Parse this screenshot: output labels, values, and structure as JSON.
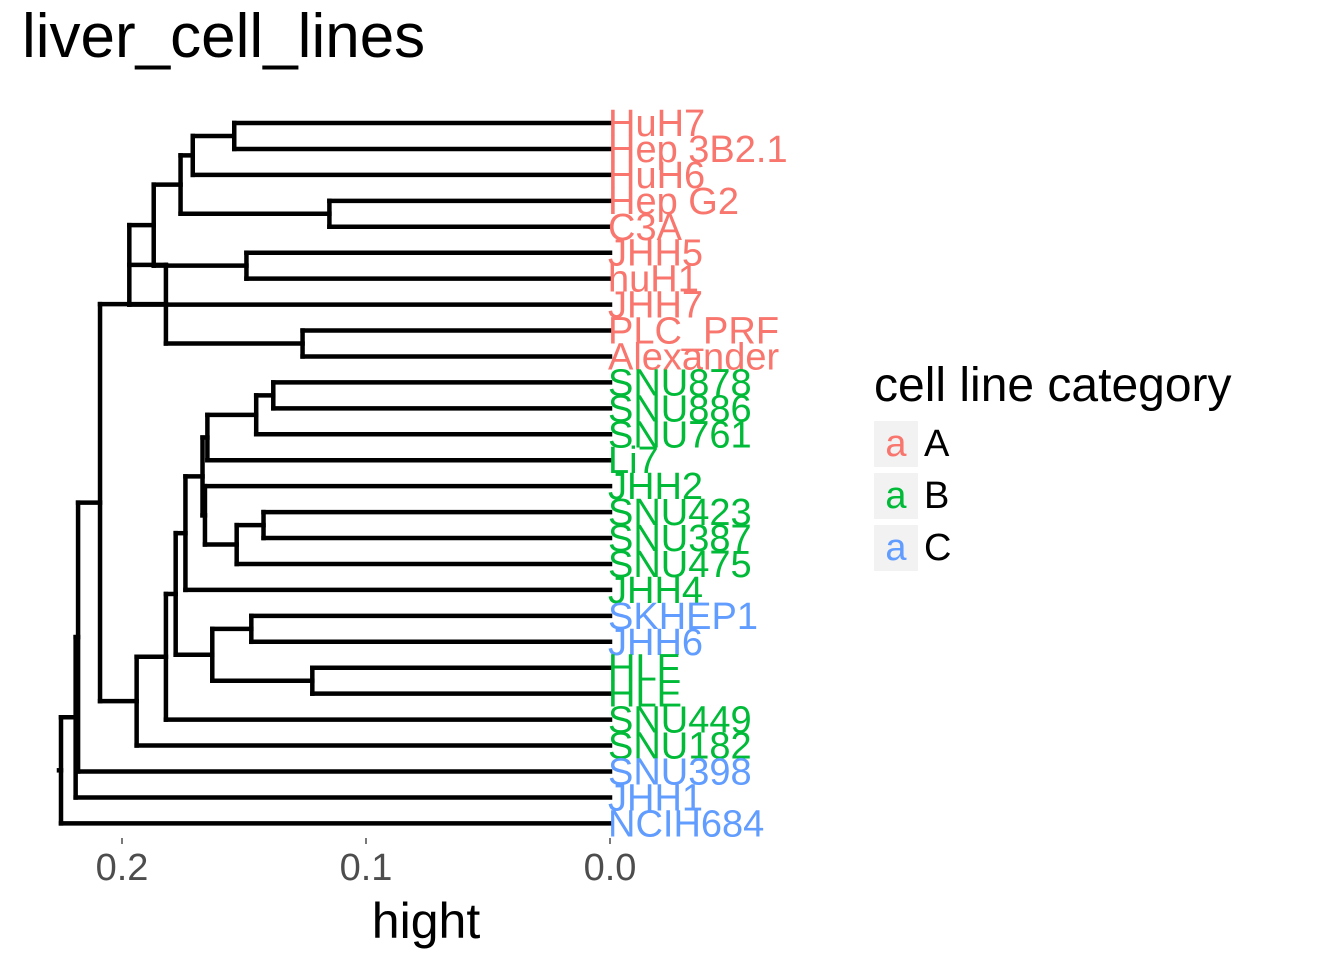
{
  "title": "liver_cell_lines",
  "chart_data": {
    "type": "dendrogram",
    "title": "liver_cell_lines",
    "xlabel": "hight",
    "x_ticks": [
      0.2,
      0.1,
      0.0
    ],
    "x_range": [
      0.225,
      0.0
    ],
    "leaves": [
      {
        "name": "HuH7",
        "category": "A"
      },
      {
        "name": "Hep 3B2.1",
        "category": "A"
      },
      {
        "name": "HuH6",
        "category": "A"
      },
      {
        "name": "Hep G2",
        "category": "A"
      },
      {
        "name": "C3A",
        "category": "A"
      },
      {
        "name": "JHH5",
        "category": "A"
      },
      {
        "name": "huH1",
        "category": "A"
      },
      {
        "name": "JHH7",
        "category": "A"
      },
      {
        "name": "PLC_PRF",
        "category": "A"
      },
      {
        "name": "Alexander",
        "category": "A"
      },
      {
        "name": "SNU878",
        "category": "B"
      },
      {
        "name": "SNU886",
        "category": "B"
      },
      {
        "name": "SNU761",
        "category": "B"
      },
      {
        "name": "Li7",
        "category": "B"
      },
      {
        "name": "JHH2",
        "category": "B"
      },
      {
        "name": "SNU423",
        "category": "B"
      },
      {
        "name": "SNU387",
        "category": "B"
      },
      {
        "name": "SNU475",
        "category": "B"
      },
      {
        "name": "JHH4",
        "category": "B"
      },
      {
        "name": "SKHEP1",
        "category": "C"
      },
      {
        "name": "JHH6",
        "category": "C"
      },
      {
        "name": "HLF",
        "category": "B"
      },
      {
        "name": "HLE",
        "category": "B"
      },
      {
        "name": "SNU449",
        "category": "B"
      },
      {
        "name": "SNU182",
        "category": "B"
      },
      {
        "name": "SNU398",
        "category": "C"
      },
      {
        "name": "JHH1",
        "category": "C"
      },
      {
        "name": "NCIH684",
        "category": "C"
      }
    ],
    "merges": [
      {
        "id": "m1",
        "children": [
          0,
          1
        ],
        "height": 0.154
      },
      {
        "id": "m2",
        "children": [
          "m1",
          2
        ],
        "height": 0.171
      },
      {
        "id": "m3",
        "children": [
          3,
          4
        ],
        "height": 0.115
      },
      {
        "id": "m4",
        "children": [
          "m2",
          "m3"
        ],
        "height": 0.176
      },
      {
        "id": "m5",
        "children": [
          5,
          6
        ],
        "height": 0.149
      },
      {
        "id": "m6",
        "children": [
          "m4",
          "m5"
        ],
        "height": 0.187
      },
      {
        "id": "m7",
        "children": [
          "m6",
          7
        ],
        "height": 0.197
      },
      {
        "id": "m8",
        "children": [
          8,
          9
        ],
        "height": 0.126
      },
      {
        "id": "m9",
        "children": [
          "m7",
          "m8"
        ],
        "height": 0.182
      },
      {
        "id": "m10",
        "children": [
          10,
          11
        ],
        "height": 0.138
      },
      {
        "id": "m11",
        "children": [
          "m10",
          12
        ],
        "height": 0.145
      },
      {
        "id": "m12",
        "children": [
          "m11",
          13
        ],
        "height": 0.165
      },
      {
        "id": "m13",
        "children": [
          15,
          16
        ],
        "height": 0.142
      },
      {
        "id": "m14",
        "children": [
          "m13",
          17
        ],
        "height": 0.153
      },
      {
        "id": "m15",
        "children": [
          14,
          "m14"
        ],
        "height": 0.166
      },
      {
        "id": "m16",
        "children": [
          "m12",
          "m15"
        ],
        "height": 0.167
      },
      {
        "id": "m17",
        "children": [
          "m16",
          18
        ],
        "height": 0.174
      },
      {
        "id": "m18",
        "children": [
          19,
          20
        ],
        "height": 0.147
      },
      {
        "id": "m19",
        "children": [
          21,
          22
        ],
        "height": 0.122
      },
      {
        "id": "m20",
        "children": [
          "m18",
          "m19"
        ],
        "height": 0.163
      },
      {
        "id": "m21",
        "children": [
          "m17",
          "m20"
        ],
        "height": 0.178
      },
      {
        "id": "m22",
        "children": [
          "m21",
          23
        ],
        "height": 0.182
      },
      {
        "id": "m23",
        "children": [
          "m22",
          24
        ],
        "height": 0.194
      },
      {
        "id": "m24",
        "children": [
          "m9",
          "m23"
        ],
        "height": 0.209
      },
      {
        "id": "m25",
        "children": [
          "m24",
          25
        ],
        "height": 0.218
      },
      {
        "id": "m26",
        "children": [
          "m25",
          26
        ],
        "height": 0.219
      },
      {
        "id": "m27",
        "children": [
          "m26",
          27
        ],
        "height": 0.225
      }
    ],
    "legend": {
      "title": "cell line category",
      "key_glyph": "a",
      "position": "right",
      "items": [
        {
          "label": "A",
          "color": "#F8766D"
        },
        {
          "label": "B",
          "color": "#00BA38"
        },
        {
          "label": "C",
          "color": "#619CFF"
        }
      ]
    },
    "colors": {
      "A": "#F8766D",
      "B": "#00BA38",
      "C": "#619CFF"
    }
  }
}
